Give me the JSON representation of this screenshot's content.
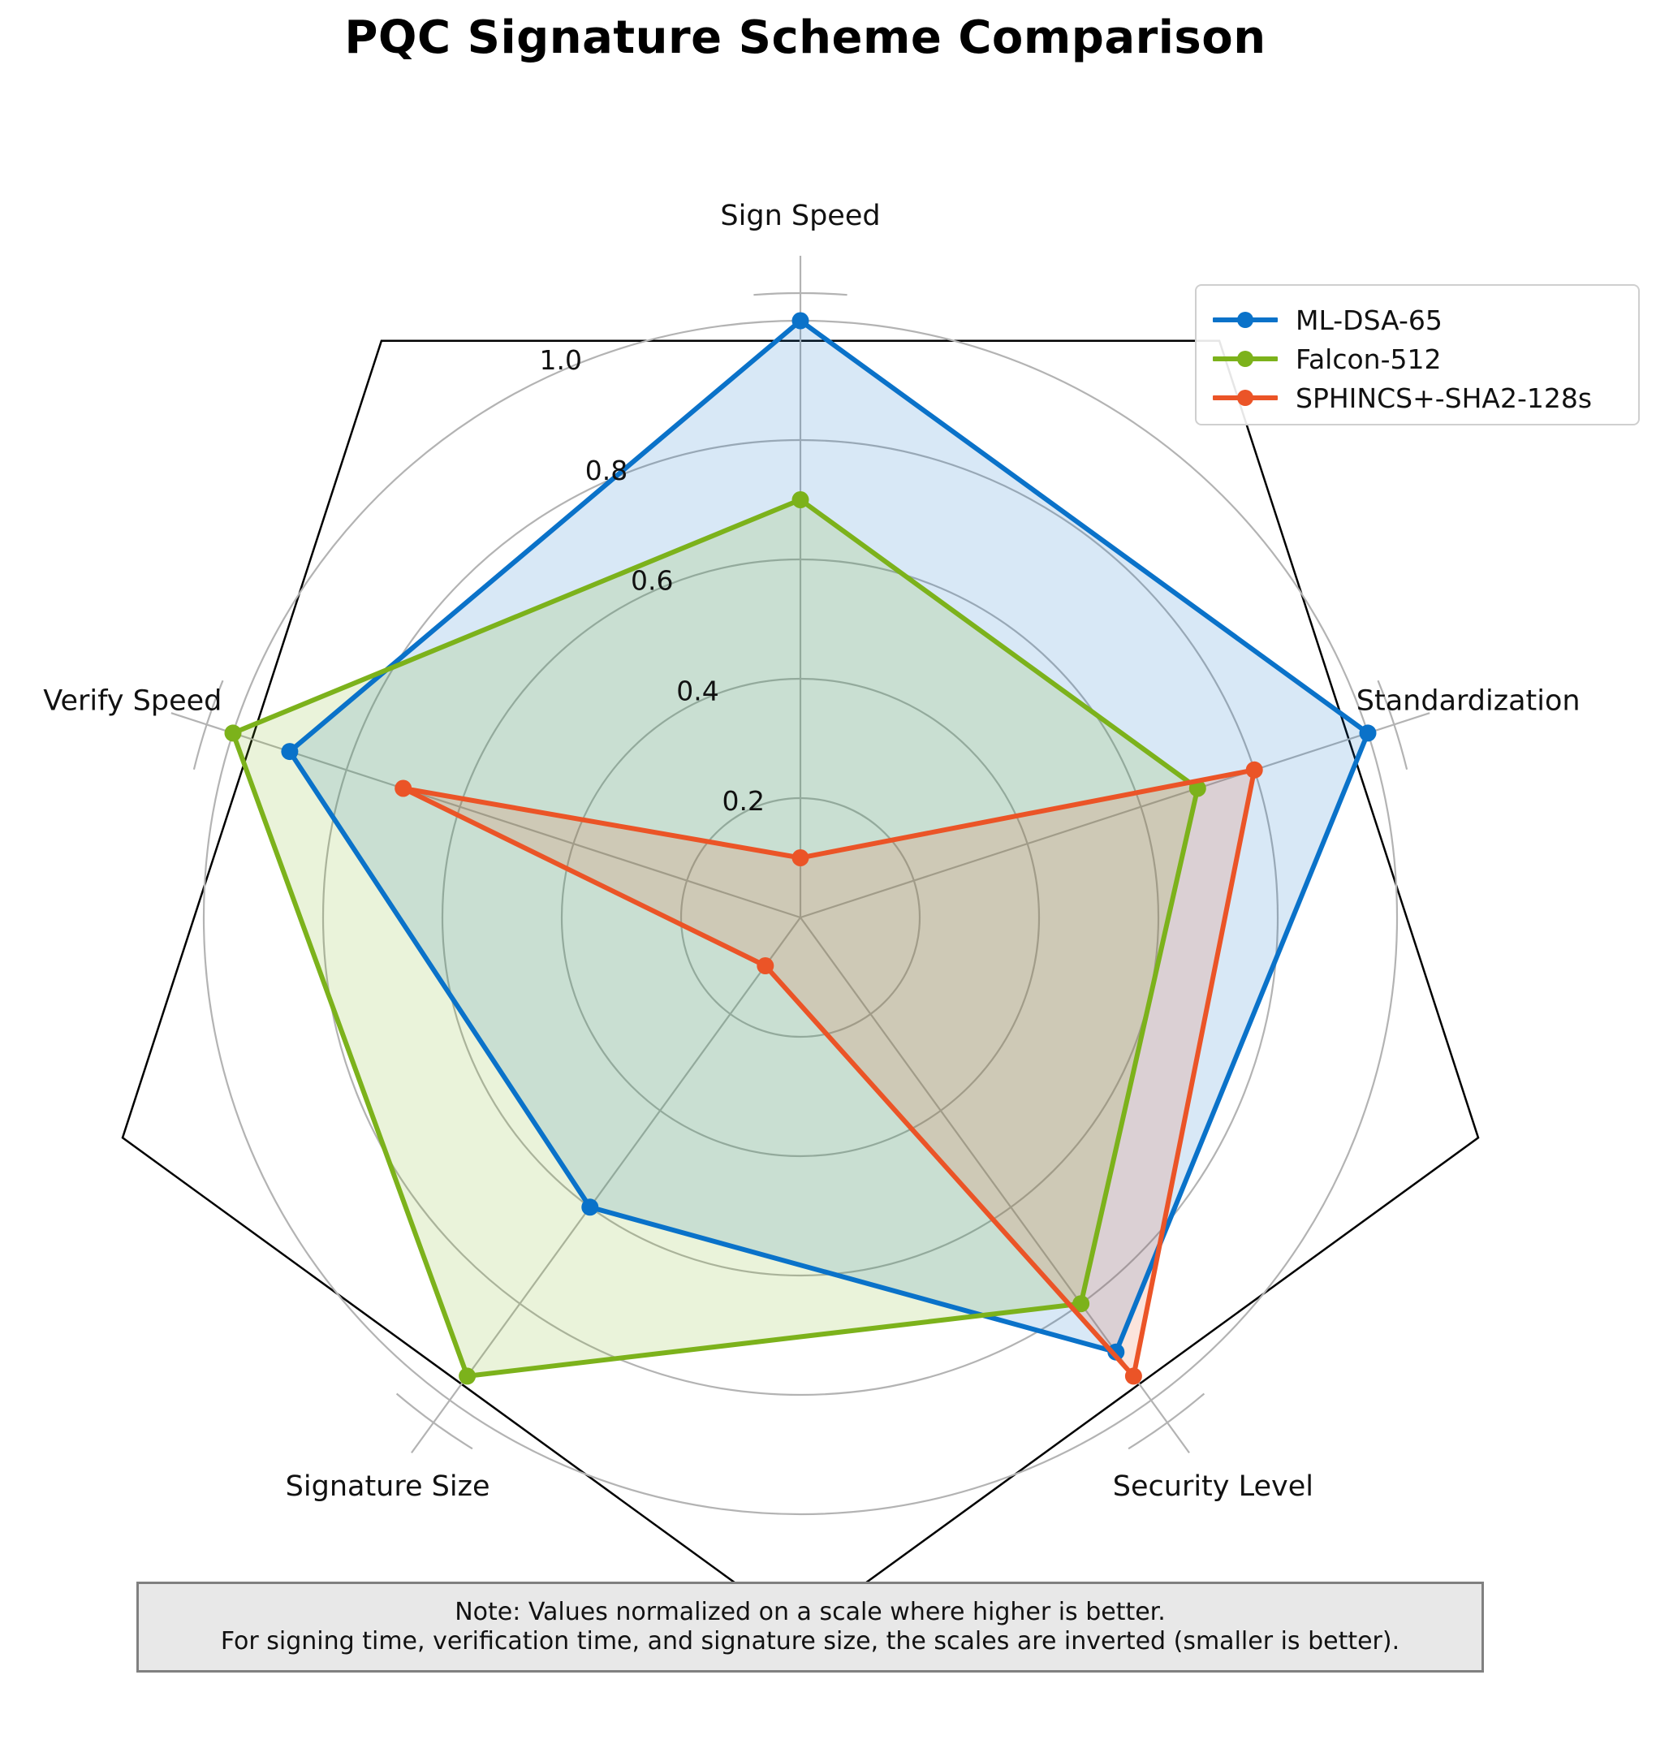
{
  "chart_data": {
    "type": "radar",
    "title": "PQC Signature Scheme Comparison",
    "axes": [
      "Sign Speed",
      "Standardization",
      "Security Level",
      "Signature Size",
      "Verify Speed"
    ],
    "rlim": [
      0,
      1.0
    ],
    "r_ticks": [
      0.2,
      0.4,
      0.6,
      0.8,
      1.0
    ],
    "r_tick_labels": [
      "0.2",
      "0.4",
      "0.6",
      "0.8",
      "1.0"
    ],
    "grid": true,
    "legend_position": "top-right",
    "series": [
      {
        "name": "ML-DSA-65",
        "color": "#0a72c9",
        "fill": "#d8e9f5",
        "values": [
          1.0,
          1.0,
          0.9,
          0.6,
          0.9
        ]
      },
      {
        "name": "Falcon-512",
        "color": "#7cb21b",
        "fill": "#e9f2d8",
        "values": [
          0.7,
          0.7,
          0.8,
          0.95,
          1.0
        ]
      },
      {
        "name": "SPHINCS+-SHA2-128s",
        "color": "#eb5427",
        "fill": "#dfd3c8",
        "values": [
          0.1,
          0.8,
          0.95,
          0.1,
          0.7
        ]
      }
    ],
    "note": {
      "line1": "Note: Values normalized on a scale where higher is better.",
      "line2": "For signing time, verification time, and signature size, the scales are inverted (smaller is better)."
    }
  }
}
